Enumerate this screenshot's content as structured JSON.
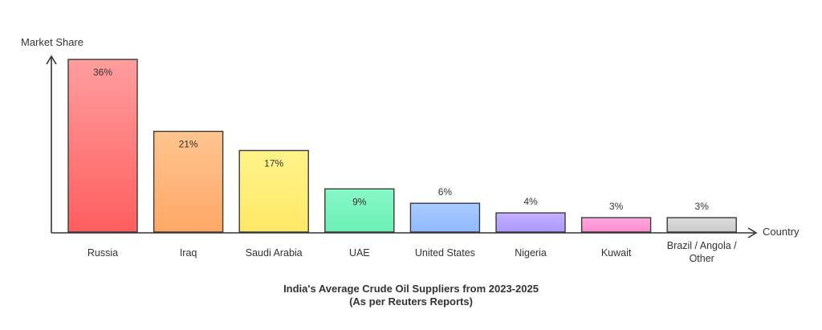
{
  "chart_data": {
    "type": "bar",
    "title": "India's Average Crude Oil Suppliers from 2023-2025",
    "subtitle": "(As per Reuters Reports)",
    "xlabel": "Country",
    "ylabel": "Market Share",
    "categories": [
      "Russia",
      "Iraq",
      "Saudi Arabia",
      "UAE",
      "United States",
      "Nigeria",
      "Kuwait",
      "Brazil / Angola / Other"
    ],
    "category_lines": [
      [
        "Russia"
      ],
      [
        "Iraq"
      ],
      [
        "Saudi Arabia"
      ],
      [
        "UAE"
      ],
      [
        "United States"
      ],
      [
        "Nigeria"
      ],
      [
        "Kuwait"
      ],
      [
        "Brazil / Angola /",
        "Other"
      ]
    ],
    "values": [
      36,
      21,
      17,
      9,
      6,
      4,
      3,
      3
    ],
    "data_labels": [
      "36%",
      "21%",
      "17%",
      "9%",
      "6%",
      "4%",
      "3%",
      "3%"
    ],
    "ylim": [
      0,
      36
    ],
    "grid": false,
    "legend": "none",
    "colors": [
      {
        "top": "#ff9e9e",
        "bottom": "#ff5e5e"
      },
      {
        "top": "#ffc58f",
        "bottom": "#ffa866"
      },
      {
        "top": "#fff48a",
        "bottom": "#ffe866"
      },
      {
        "top": "#88f8c8",
        "bottom": "#6cf0b4"
      },
      {
        "top": "#a9ccff",
        "bottom": "#90baff"
      },
      {
        "top": "#c4b2ff",
        "bottom": "#ad99ff"
      },
      {
        "top": "#ffaade",
        "bottom": "#ff8ccf"
      },
      {
        "top": "#dcdcdc",
        "bottom": "#cccccc"
      }
    ],
    "bar_stroke": "#3a3a3a",
    "axis_color": "#333333"
  }
}
